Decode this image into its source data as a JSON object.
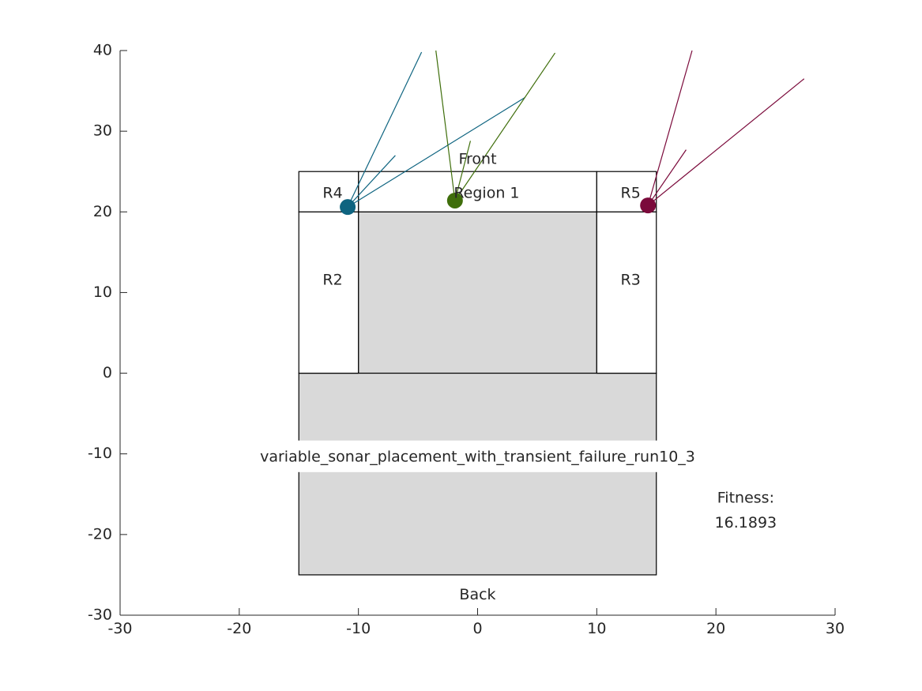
{
  "chart_data": {
    "type": "scatter",
    "xlim": [
      -30,
      30
    ],
    "ylim": [
      -30,
      40
    ],
    "x_ticks": [
      -30,
      -20,
      -10,
      0,
      10,
      20,
      30
    ],
    "y_ticks": [
      -30,
      -20,
      -10,
      0,
      10,
      20,
      30,
      40
    ],
    "grid": false,
    "axes_box": "left-bottom",
    "shaded_color": "#d9d9d9",
    "regions": [
      {
        "label": "",
        "x0": -10,
        "y0": 0,
        "x1": 10,
        "y1": 20,
        "shaded": true
      },
      {
        "label": "",
        "x0": -15,
        "y0": -25,
        "x1": 15,
        "y1": 0,
        "shaded": true
      },
      {
        "label": "Region 1",
        "x0": -10,
        "y0": 20,
        "x1": 10,
        "y1": 25,
        "shaded": false
      },
      {
        "label": "R2",
        "x0": -15,
        "y0": 0,
        "x1": -10,
        "y1": 20,
        "shaded": false
      },
      {
        "label": "R3",
        "x0": 10,
        "y0": 0,
        "x1": 15,
        "y1": 20,
        "shaded": false
      },
      {
        "label": "R4",
        "x0": -15,
        "y0": 20,
        "x1": -10,
        "y1": 25,
        "shaded": false
      },
      {
        "label": "R5",
        "x0": 10,
        "y0": 20,
        "x1": 15,
        "y1": 25,
        "shaded": false
      }
    ],
    "region_labels": [
      {
        "text": "Region 1",
        "x": -2,
        "y": 22.3
      },
      {
        "text": "R2",
        "x": -13,
        "y": 11.5
      },
      {
        "text": "R3",
        "x": 12,
        "y": 11.5
      },
      {
        "text": "R4",
        "x": -13,
        "y": 22.3
      },
      {
        "text": "R5",
        "x": 12,
        "y": 22.3
      }
    ],
    "annotations": [
      {
        "text": "Front",
        "x": 0,
        "y": 26.5
      },
      {
        "text": "Back",
        "x": 0,
        "y": -27.5
      },
      {
        "text": "variable_sonar_placement_with_transient_failure_run10_3",
        "x": 0,
        "y": -10.4,
        "boxed": true
      },
      {
        "text": "Fitness:",
        "x": 22.5,
        "y": -15.5
      },
      {
        "text": "16.1893",
        "x": 22.5,
        "y": -18.6
      }
    ],
    "sensors": [
      {
        "x": -10.9,
        "y": 20.6,
        "color": "#0e6480",
        "rays": [
          [
            -4.7,
            39.8
          ],
          [
            -6.9,
            27.0
          ],
          [
            4.0,
            34.2
          ]
        ]
      },
      {
        "x": -1.9,
        "y": 21.4,
        "color": "#3f6e0b",
        "rays": [
          [
            -3.5,
            40.0
          ],
          [
            6.5,
            39.7
          ],
          [
            -0.6,
            28.8
          ]
        ]
      },
      {
        "x": 14.3,
        "y": 20.8,
        "color": "#7b0a3b",
        "rays": [
          [
            18.0,
            40.0
          ],
          [
            17.5,
            27.7
          ],
          [
            27.4,
            36.5
          ]
        ]
      }
    ]
  }
}
